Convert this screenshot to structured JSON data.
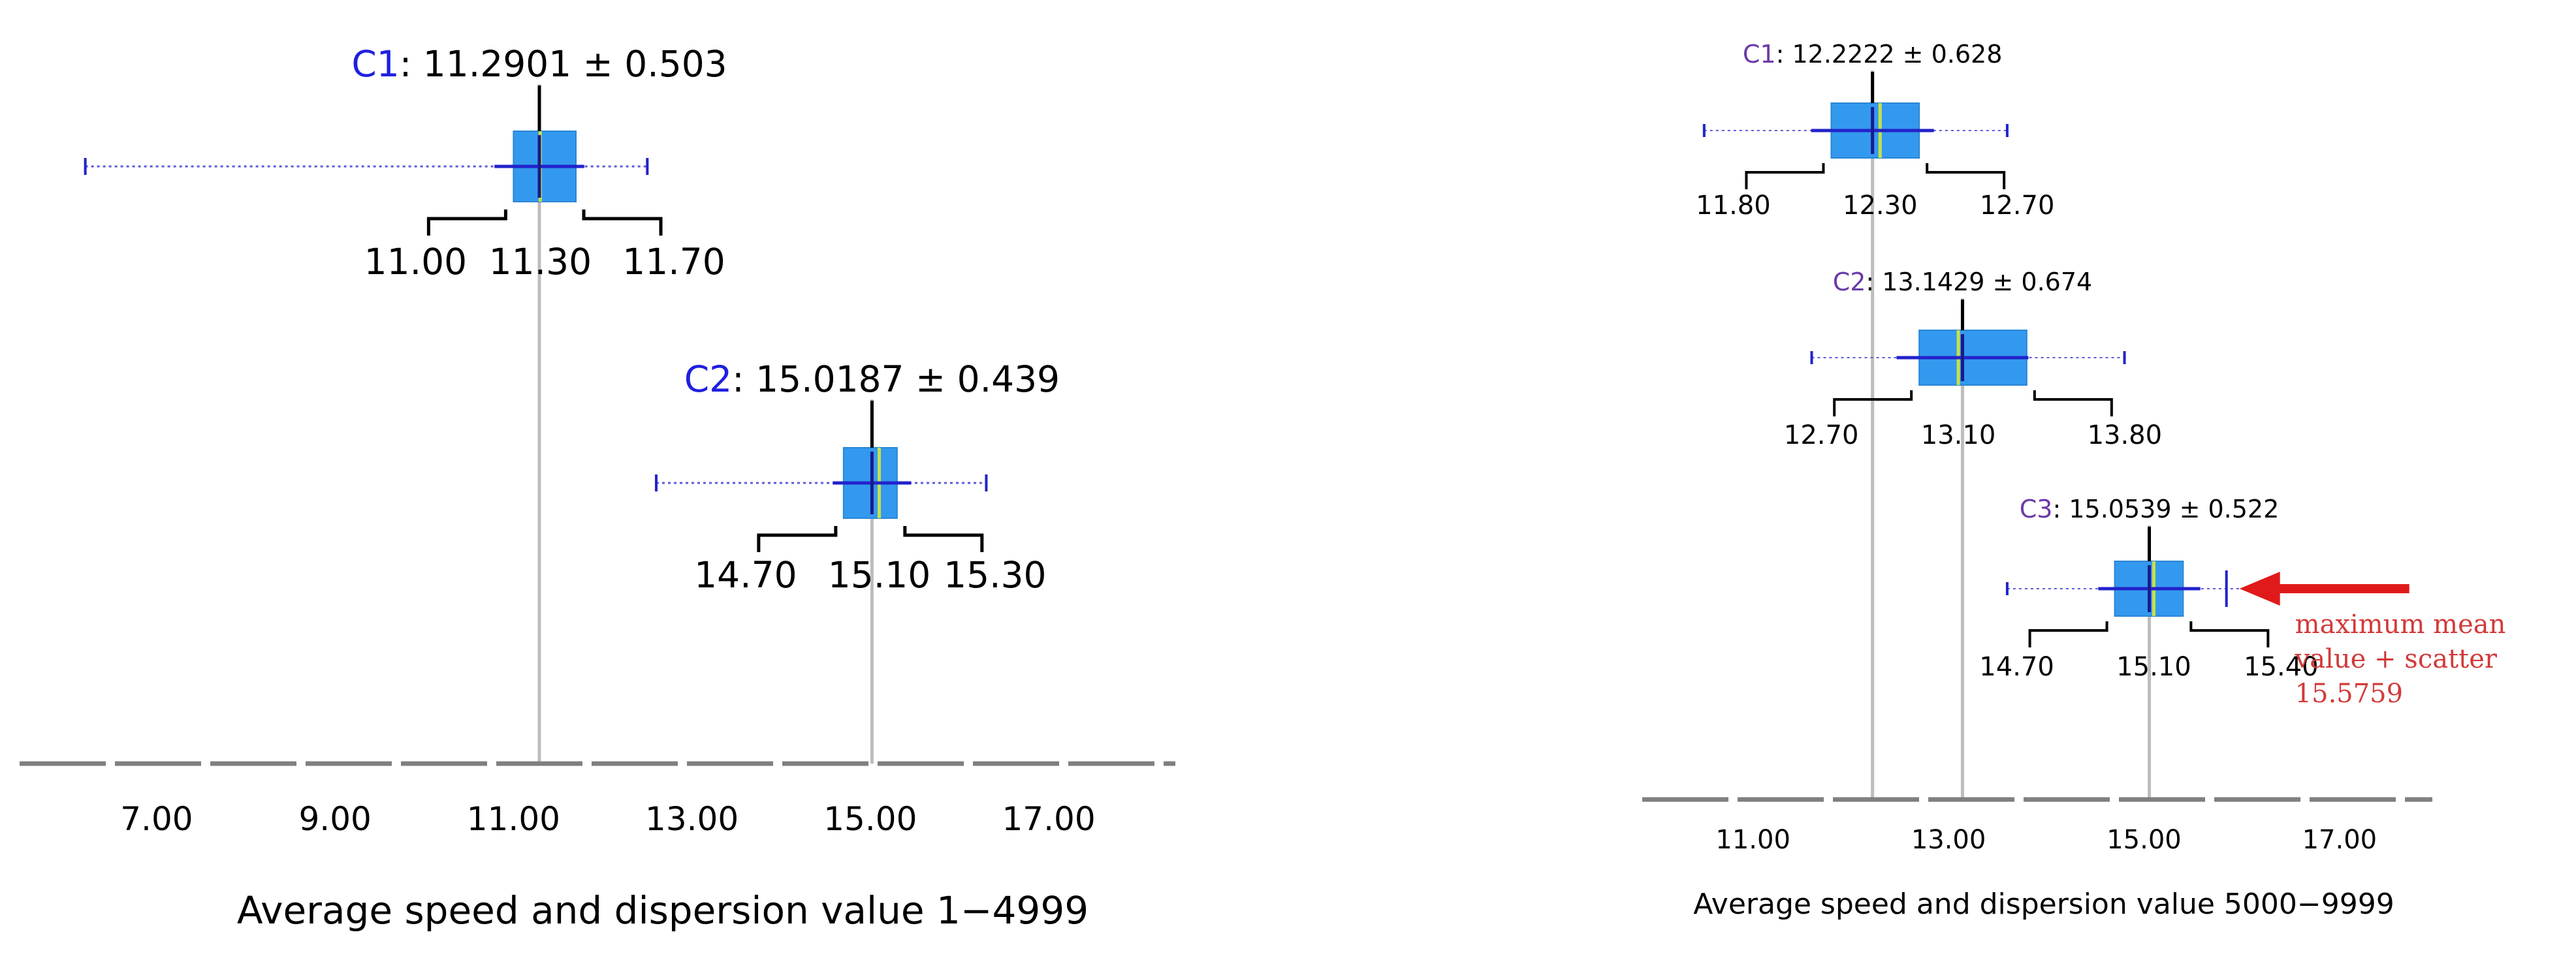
{
  "colors": {
    "box": "#3399ee",
    "whisker_dotted": "#5b5bdd",
    "whisker_bar": "#2222cc",
    "mean_line": "#1a1a8a",
    "median_line": "#c8e04a",
    "guide_line": "#bdbdbd",
    "axis": "#7f7f7f",
    "bracket": "#000000",
    "label_left": "#1f1fe0",
    "label_right": "#6a3aa8",
    "arrow": "#e01a1a",
    "note": "#d23a3a"
  },
  "chart_data": [
    {
      "type": "box",
      "caption": "Average speed and dispersion value 1−4999",
      "x_ticks": [
        "7.00",
        "9.00",
        "11.00",
        "13.00",
        "15.00",
        "17.00"
      ],
      "x_tick_values": [
        7,
        9,
        11,
        13,
        15,
        17
      ],
      "xlim": [
        5.5,
        18.2
      ],
      "series": [
        {
          "name": "C1",
          "mean": 11.2901,
          "stdev": 0.503,
          "label_rest": ": 11.2901 ± 0.503",
          "q1": 11.0,
          "median": 11.3,
          "q3": 11.7,
          "q1_label": "11.00",
          "median_label": "11.30",
          "q3_label": "11.70",
          "whisker_min": 6.2,
          "whisker_max": 12.5
        },
        {
          "name": "C2",
          "mean": 15.0187,
          "stdev": 0.439,
          "label_rest": ": 15.0187 ± 0.439",
          "q1": 14.7,
          "median": 15.1,
          "q3": 15.3,
          "q1_label": "14.70",
          "median_label": "15.10",
          "q3_label": "15.30",
          "whisker_min": 12.6,
          "whisker_max": 16.3
        }
      ]
    },
    {
      "type": "box",
      "caption": "Average speed and dispersion value 5000−9999",
      "x_ticks": [
        "11.00",
        "13.00",
        "15.00",
        "17.00"
      ],
      "x_tick_values": [
        11,
        13,
        15,
        17
      ],
      "xlim": [
        9.9,
        18.25
      ],
      "series": [
        {
          "name": "C1",
          "mean": 12.2222,
          "stdev": 0.628,
          "label_rest": ": 12.2222 ± 0.628",
          "q1": 11.8,
          "median": 12.3,
          "q3": 12.7,
          "q1_label": "11.80",
          "median_label": "12.30",
          "q3_label": "12.70",
          "whisker_min": 10.5,
          "whisker_max": 13.6
        },
        {
          "name": "C2",
          "mean": 13.1429,
          "stdev": 0.674,
          "label_rest": ": 13.1429 ± 0.674",
          "q1": 12.7,
          "median": 13.1,
          "q3": 13.8,
          "q1_label": "12.70",
          "median_label": "13.10",
          "q3_label": "13.80",
          "whisker_min": 11.6,
          "whisker_max": 14.8
        },
        {
          "name": "C3",
          "mean": 15.0539,
          "stdev": 0.522,
          "label_rest": ": 15.0539 ± 0.522",
          "q1": 14.7,
          "median": 15.1,
          "q3": 15.4,
          "q1_label": "14.70",
          "median_label": "15.10",
          "q3_label": "15.40",
          "whisker_min": 13.6,
          "whisker_max": 16.2
        }
      ],
      "annotation": {
        "lines": [
          "maximum mean",
          "value + scatter",
          "15.5759"
        ],
        "value": 15.5759
      }
    }
  ]
}
